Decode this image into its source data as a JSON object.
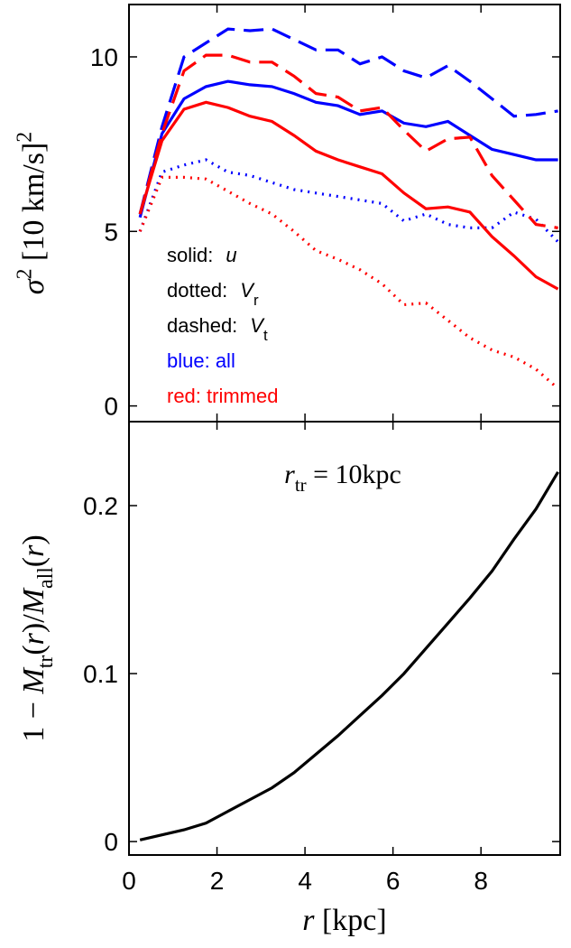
{
  "chart_data": [
    {
      "type": "line",
      "ylabel": [
        {
          "text": "σ",
          "italic": true
        },
        {
          "text": "2",
          "sup": true
        },
        {
          "text": " [10 km/s]"
        },
        {
          "text": "2",
          "sup": true
        }
      ],
      "x": [
        0.25,
        0.75,
        1.25,
        1.75,
        2.25,
        2.75,
        3.25,
        3.75,
        4.25,
        4.75,
        5.25,
        5.75,
        6.25,
        6.75,
        7.25,
        7.75,
        8.25,
        8.75,
        9.25,
        9.75
      ],
      "xlim": [
        0,
        9.8
      ],
      "xticks": [
        0,
        2,
        4,
        6,
        8
      ],
      "show_xtick_labels": false,
      "ylim": [
        -0.45,
        11.5
      ],
      "yticks": [
        0,
        5,
        10
      ],
      "series": [
        {
          "color": "#0000ff",
          "dash": "solid",
          "values": [
            5.4,
            7.8,
            8.8,
            9.15,
            9.3,
            9.2,
            9.15,
            8.95,
            8.7,
            8.6,
            8.35,
            8.45,
            8.1,
            8.0,
            8.15,
            7.75,
            7.35,
            7.2,
            7.05,
            7.05
          ]
        },
        {
          "color": "#0000ff",
          "dash": "dashed",
          "values": [
            5.5,
            8.0,
            10.0,
            10.4,
            10.8,
            10.75,
            10.8,
            10.5,
            10.2,
            10.2,
            9.8,
            10.0,
            9.6,
            9.4,
            9.75,
            9.3,
            8.8,
            8.3,
            8.35,
            8.45
          ]
        },
        {
          "color": "#0000ff",
          "dash": "dotted",
          "values": [
            5.0,
            6.7,
            6.9,
            7.05,
            6.7,
            6.6,
            6.4,
            6.2,
            6.1,
            6.0,
            5.9,
            5.8,
            5.3,
            5.5,
            5.2,
            5.1,
            5.1,
            5.55,
            5.35,
            4.7
          ]
        },
        {
          "color": "#ff0000",
          "dash": "solid",
          "values": [
            5.5,
            7.6,
            8.5,
            8.7,
            8.55,
            8.3,
            8.15,
            7.75,
            7.3,
            7.05,
            6.85,
            6.65,
            6.1,
            5.65,
            5.7,
            5.55,
            4.85,
            4.3,
            3.7,
            3.35
          ]
        },
        {
          "color": "#ff0000",
          "dash": "dashed",
          "values": [
            5.5,
            7.8,
            9.6,
            10.05,
            10.05,
            9.85,
            9.85,
            9.45,
            8.95,
            8.85,
            8.45,
            8.55,
            7.9,
            7.3,
            7.65,
            7.7,
            6.6,
            5.9,
            5.2,
            5.1
          ]
        },
        {
          "color": "#ff0000",
          "dash": "dotted",
          "values": [
            5.0,
            6.55,
            6.55,
            6.5,
            6.15,
            5.8,
            5.5,
            5.0,
            4.45,
            4.2,
            3.9,
            3.5,
            2.9,
            2.95,
            2.45,
            1.95,
            1.6,
            1.4,
            1.05,
            0.5
          ]
        }
      ],
      "annotations": [
        {
          "text": "solid:",
          "symbol": "u"
        },
        {
          "text": "dotted:",
          "symbol": "V",
          "sub": "r"
        },
        {
          "text": "dashed:",
          "symbol": "V",
          "sub": "t"
        },
        {
          "text": "blue: all",
          "color": "#0000ff"
        },
        {
          "text": "red: trimmed",
          "color": "#ff0000"
        }
      ]
    },
    {
      "type": "line",
      "ylabel": [
        {
          "text": "1 − "
        },
        {
          "text": "M",
          "italic": true
        },
        {
          "text": "tr",
          "sub": true
        },
        {
          "text": "("
        },
        {
          "text": "r",
          "italic": true
        },
        {
          "text": ")/"
        },
        {
          "text": "M",
          "italic": true
        },
        {
          "text": "all",
          "sub": true
        },
        {
          "text": "("
        },
        {
          "text": "r",
          "italic": true
        },
        {
          "text": ")"
        }
      ],
      "xlabel": [
        {
          "text": "r",
          "italic": true
        },
        {
          "text": " [kpc]"
        }
      ],
      "annotation": [
        {
          "text": "r",
          "italic": true
        },
        {
          "text": "tr",
          "sub": true
        },
        {
          "text": " = 10kpc"
        }
      ],
      "x": [
        0.25,
        0.75,
        1.25,
        1.75,
        2.25,
        2.75,
        3.25,
        3.75,
        4.25,
        4.75,
        5.25,
        5.75,
        6.25,
        6.75,
        7.25,
        7.75,
        8.25,
        8.75,
        9.25,
        9.75
      ],
      "xlim": [
        0,
        9.8
      ],
      "xticks": [
        0,
        2,
        4,
        6,
        8
      ],
      "show_xtick_labels": true,
      "ylim": [
        -0.008,
        0.25
      ],
      "yticks": [
        0,
        0.1,
        0.2
      ],
      "series": [
        {
          "color": "#000000",
          "dash": "solid",
          "values": [
            0.001,
            0.004,
            0.007,
            0.011,
            0.018,
            0.025,
            0.032,
            0.041,
            0.052,
            0.063,
            0.075,
            0.087,
            0.1,
            0.115,
            0.13,
            0.145,
            0.161,
            0.18,
            0.198,
            0.22
          ]
        }
      ]
    }
  ]
}
